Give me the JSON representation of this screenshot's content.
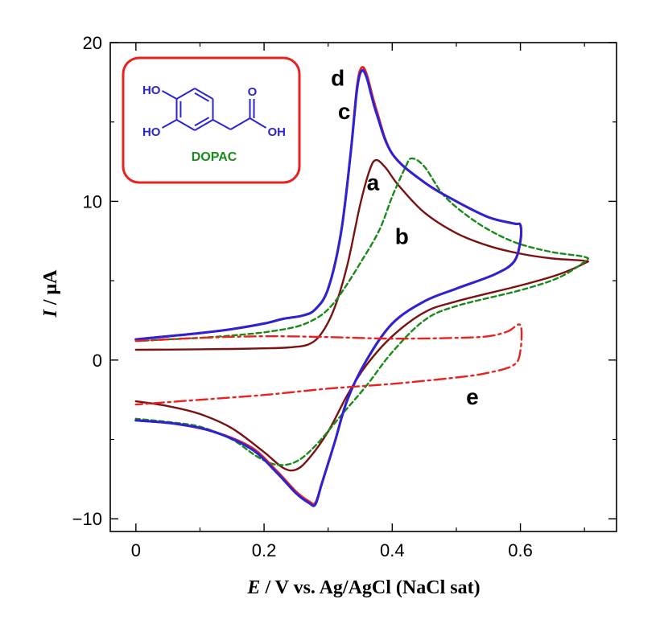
{
  "chart_data": {
    "type": "line",
    "title": "",
    "xlabel": {
      "italic": "E",
      "rest": " / V vs. Ag/AgCl (NaCl sat)"
    },
    "ylabel": {
      "italic": "I",
      "rest": " / μA"
    },
    "xlim": [
      -0.04,
      0.75
    ],
    "ylim": [
      -10.8,
      20
    ],
    "x_ticks": [
      {
        "value": 0,
        "label": "0"
      },
      {
        "value": 0.2,
        "label": "0.2"
      },
      {
        "value": 0.4,
        "label": "0.4"
      },
      {
        "value": 0.6,
        "label": "0.6"
      }
    ],
    "y_ticks": [
      {
        "value": -10,
        "label": "−10"
      },
      {
        "value": 0,
        "label": "0"
      },
      {
        "value": 10,
        "label": "10"
      },
      {
        "value": 20,
        "label": "20"
      }
    ],
    "x_minor_step": 0.1,
    "y_minor_step": 5,
    "grid": false,
    "legend": "none",
    "inset": {
      "molecule_name": "DOPAC",
      "labels": {
        "ho_top": "HO",
        "ho_bottom": "HO",
        "carbonyl_o": "O",
        "acid_oh": "OH"
      },
      "colors": {
        "border": "#e8231f",
        "structure": "#2b24d6",
        "name": "#1a8a1a"
      }
    },
    "series": [
      {
        "label": "a",
        "color": "#7a1212",
        "style": "solid",
        "label_pos": [
          0.37,
          10.7
        ],
        "points": [
          [
            0,
            0.65
          ],
          [
            0.05,
            0.66
          ],
          [
            0.1,
            0.68
          ],
          [
            0.15,
            0.7
          ],
          [
            0.2,
            0.74
          ],
          [
            0.24,
            0.8
          ],
          [
            0.27,
            1.0
          ],
          [
            0.29,
            1.7
          ],
          [
            0.31,
            3.3
          ],
          [
            0.33,
            6.0
          ],
          [
            0.35,
            9.8
          ],
          [
            0.365,
            12.0
          ],
          [
            0.375,
            12.6
          ],
          [
            0.39,
            12.1
          ],
          [
            0.41,
            11.0
          ],
          [
            0.45,
            9.3
          ],
          [
            0.5,
            8.0
          ],
          [
            0.55,
            7.2
          ],
          [
            0.6,
            6.7
          ],
          [
            0.65,
            6.4
          ],
          [
            0.7,
            6.25
          ],
          [
            0.7,
            6.1
          ],
          [
            0.66,
            5.4
          ],
          [
            0.6,
            4.7
          ],
          [
            0.5,
            3.7
          ],
          [
            0.45,
            3.0
          ],
          [
            0.4,
            1.5
          ],
          [
            0.36,
            -0.3
          ],
          [
            0.33,
            -2.2
          ],
          [
            0.3,
            -4.5
          ],
          [
            0.27,
            -6.2
          ],
          [
            0.25,
            -6.9
          ],
          [
            0.23,
            -6.8
          ],
          [
            0.2,
            -5.8
          ],
          [
            0.15,
            -4.3
          ],
          [
            0.1,
            -3.4
          ],
          [
            0.05,
            -2.9
          ],
          [
            0,
            -2.6
          ]
        ]
      },
      {
        "label": "b",
        "color": "#1a8a1a",
        "style": "dashed",
        "label_pos": [
          0.415,
          7.3
        ],
        "points": [
          [
            0,
            1.2
          ],
          [
            0.05,
            1.3
          ],
          [
            0.1,
            1.4
          ],
          [
            0.15,
            1.55
          ],
          [
            0.2,
            1.75
          ],
          [
            0.25,
            2.1
          ],
          [
            0.28,
            2.6
          ],
          [
            0.3,
            3.2
          ],
          [
            0.32,
            4.2
          ],
          [
            0.35,
            6.1
          ],
          [
            0.38,
            8.2
          ],
          [
            0.4,
            10.3
          ],
          [
            0.42,
            12.1
          ],
          [
            0.43,
            12.7
          ],
          [
            0.45,
            12.2
          ],
          [
            0.48,
            10.4
          ],
          [
            0.52,
            9.0
          ],
          [
            0.56,
            8.0
          ],
          [
            0.6,
            7.3
          ],
          [
            0.65,
            6.8
          ],
          [
            0.7,
            6.5
          ],
          [
            0.7,
            6.2
          ],
          [
            0.66,
            5.2
          ],
          [
            0.6,
            4.4
          ],
          [
            0.5,
            3.4
          ],
          [
            0.45,
            2.5
          ],
          [
            0.4,
            0.5
          ],
          [
            0.36,
            -1.6
          ],
          [
            0.32,
            -3.5
          ],
          [
            0.28,
            -5.4
          ],
          [
            0.25,
            -6.4
          ],
          [
            0.22,
            -6.6
          ],
          [
            0.19,
            -6.1
          ],
          [
            0.15,
            -5.0
          ],
          [
            0.1,
            -4.2
          ],
          [
            0.05,
            -3.9
          ],
          [
            0,
            -3.7
          ]
        ]
      },
      {
        "label": "c",
        "color": "#e8231f",
        "style": "solid",
        "label_pos": [
          0.325,
          15.2
        ],
        "points": [
          [
            0,
            1.3
          ],
          [
            0.05,
            1.5
          ],
          [
            0.1,
            1.7
          ],
          [
            0.15,
            1.95
          ],
          [
            0.2,
            2.3
          ],
          [
            0.23,
            2.6
          ],
          [
            0.26,
            2.8
          ],
          [
            0.28,
            3.2
          ],
          [
            0.3,
            4.5
          ],
          [
            0.32,
            8.0
          ],
          [
            0.335,
            13.0
          ],
          [
            0.345,
            17.2
          ],
          [
            0.352,
            18.4
          ],
          [
            0.36,
            18.0
          ],
          [
            0.375,
            15.8
          ],
          [
            0.4,
            13.0
          ],
          [
            0.45,
            11.2
          ],
          [
            0.5,
            10.0
          ],
          [
            0.55,
            9.0
          ],
          [
            0.59,
            8.6
          ],
          [
            0.6,
            8.5
          ],
          [
            0.6,
            7.5
          ],
          [
            0.59,
            6.2
          ],
          [
            0.56,
            5.4
          ],
          [
            0.5,
            4.5
          ],
          [
            0.45,
            3.7
          ],
          [
            0.4,
            2.3
          ],
          [
            0.36,
            0.0
          ],
          [
            0.33,
            -2.5
          ],
          [
            0.31,
            -5.2
          ],
          [
            0.29,
            -7.8
          ],
          [
            0.28,
            -9.0
          ],
          [
            0.27,
            -8.9
          ],
          [
            0.25,
            -8.3
          ],
          [
            0.22,
            -7.0
          ],
          [
            0.18,
            -5.5
          ],
          [
            0.12,
            -4.5
          ],
          [
            0.06,
            -4.0
          ],
          [
            0,
            -3.8
          ]
        ]
      },
      {
        "label": "d",
        "color": "#2b24d6",
        "style": "solid",
        "label_pos": [
          0.315,
          17.3
        ],
        "points": [
          [
            0,
            1.3
          ],
          [
            0.05,
            1.5
          ],
          [
            0.1,
            1.7
          ],
          [
            0.15,
            1.95
          ],
          [
            0.2,
            2.3
          ],
          [
            0.23,
            2.6
          ],
          [
            0.26,
            2.8
          ],
          [
            0.28,
            3.2
          ],
          [
            0.3,
            4.5
          ],
          [
            0.32,
            8.0
          ],
          [
            0.335,
            13.0
          ],
          [
            0.345,
            17.0
          ],
          [
            0.352,
            18.2
          ],
          [
            0.36,
            17.8
          ],
          [
            0.375,
            15.6
          ],
          [
            0.4,
            13.0
          ],
          [
            0.45,
            11.2
          ],
          [
            0.5,
            10.0
          ],
          [
            0.55,
            9.0
          ],
          [
            0.59,
            8.6
          ],
          [
            0.6,
            8.5
          ],
          [
            0.6,
            7.5
          ],
          [
            0.59,
            6.2
          ],
          [
            0.56,
            5.4
          ],
          [
            0.5,
            4.5
          ],
          [
            0.45,
            3.7
          ],
          [
            0.4,
            2.3
          ],
          [
            0.36,
            0.0
          ],
          [
            0.33,
            -2.5
          ],
          [
            0.31,
            -5.2
          ],
          [
            0.29,
            -7.8
          ],
          [
            0.28,
            -9.1
          ],
          [
            0.27,
            -9.0
          ],
          [
            0.25,
            -8.4
          ],
          [
            0.22,
            -7.1
          ],
          [
            0.18,
            -5.6
          ],
          [
            0.12,
            -4.5
          ],
          [
            0.06,
            -4.0
          ],
          [
            0,
            -3.8
          ]
        ]
      },
      {
        "label": "e",
        "color": "#e8231f",
        "style": "dashdot",
        "label_pos": [
          0.525,
          -2.8
        ],
        "points": [
          [
            0,
            1.2
          ],
          [
            0.1,
            1.4
          ],
          [
            0.2,
            1.5
          ],
          [
            0.3,
            1.45
          ],
          [
            0.4,
            1.35
          ],
          [
            0.5,
            1.4
          ],
          [
            0.55,
            1.5
          ],
          [
            0.58,
            1.8
          ],
          [
            0.6,
            2.2
          ],
          [
            0.6,
            0.6
          ],
          [
            0.59,
            -0.3
          ],
          [
            0.55,
            -0.8
          ],
          [
            0.5,
            -1.1
          ],
          [
            0.4,
            -1.5
          ],
          [
            0.3,
            -1.8
          ],
          [
            0.2,
            -2.2
          ],
          [
            0.1,
            -2.5
          ],
          [
            0,
            -2.8
          ]
        ]
      }
    ]
  }
}
